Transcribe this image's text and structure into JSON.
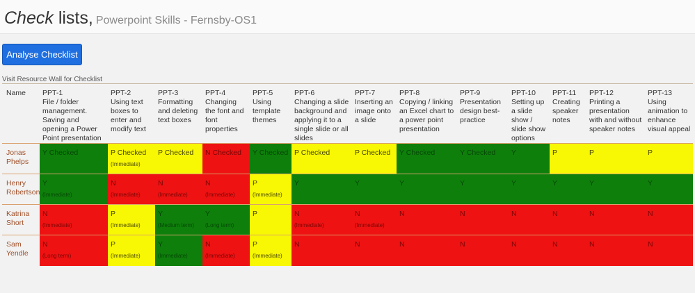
{
  "header": {
    "title_italic": "Check",
    "title_rest": " lists,",
    "subtitle": "Powerpoint Skills - Fernsby-OS1"
  },
  "toolbar": {
    "analyse_label": "Analyse Checklist",
    "resource_link": "Visit Resource Wall for Checklist"
  },
  "table": {
    "name_header": "Name",
    "columns": [
      {
        "code": "PPT-1",
        "desc": "File / folder management. Saving and opening a Power Point presentation"
      },
      {
        "code": "PPT-2",
        "desc": "Using text boxes to enter and modify text"
      },
      {
        "code": "PPT-3",
        "desc": "Formatting and deleting text boxes"
      },
      {
        "code": "PPT-4",
        "desc": "Changing the font and font properties"
      },
      {
        "code": "PPT-5",
        "desc": "Using template themes"
      },
      {
        "code": "PPT-6",
        "desc": "Changing a slide background and applying it to a single slide or all slides"
      },
      {
        "code": "PPT-7",
        "desc": "Inserting an image onto a slide"
      },
      {
        "code": "PPT-8",
        "desc": "Copying / linking an Excel chart to a power point presentation"
      },
      {
        "code": "PPT-9",
        "desc": "Presentation design best-practice"
      },
      {
        "code": "PPT-10",
        "desc": "Setting up a slide show / slide show options"
      },
      {
        "code": "PPT-11",
        "desc": "Creating speaker notes"
      },
      {
        "code": "PPT-12",
        "desc": "Printing a presentation with and without speaker notes"
      },
      {
        "code": "PPT-13",
        "desc": "Using animation to enhance visual appeal"
      }
    ],
    "rows": [
      {
        "name": "Jonas Phelps",
        "cells": [
          {
            "s": "Y",
            "t": "Y Checked",
            "w": ""
          },
          {
            "s": "P",
            "t": "P Checked",
            "w": "(Immediate)"
          },
          {
            "s": "P",
            "t": "P Checked",
            "w": ""
          },
          {
            "s": "N",
            "t": "N Checked",
            "w": ""
          },
          {
            "s": "Y",
            "t": "Y Checked",
            "w": ""
          },
          {
            "s": "P",
            "t": "P Checked",
            "w": ""
          },
          {
            "s": "P",
            "t": "P Checked",
            "w": ""
          },
          {
            "s": "Y",
            "t": "Y Checked",
            "w": ""
          },
          {
            "s": "Y",
            "t": "Y Checked",
            "w": ""
          },
          {
            "s": "Y",
            "t": "Y",
            "w": ""
          },
          {
            "s": "P",
            "t": "P",
            "w": ""
          },
          {
            "s": "P",
            "t": "P",
            "w": ""
          },
          {
            "s": "P",
            "t": "P",
            "w": ""
          }
        ]
      },
      {
        "name": "Henry Robertson",
        "cells": [
          {
            "s": "Y",
            "t": "Y",
            "w": "(Immediate)"
          },
          {
            "s": "N",
            "t": "N",
            "w": "(Immediate)"
          },
          {
            "s": "N",
            "t": "N",
            "w": "(Immediate)"
          },
          {
            "s": "N",
            "t": "N",
            "w": "(Immediate)"
          },
          {
            "s": "P",
            "t": "P",
            "w": "(Immediate)"
          },
          {
            "s": "Y",
            "t": "Y",
            "w": ""
          },
          {
            "s": "Y",
            "t": "Y",
            "w": ""
          },
          {
            "s": "Y",
            "t": "Y",
            "w": ""
          },
          {
            "s": "Y",
            "t": "Y",
            "w": ""
          },
          {
            "s": "Y",
            "t": "Y",
            "w": ""
          },
          {
            "s": "Y",
            "t": "Y",
            "w": ""
          },
          {
            "s": "Y",
            "t": "Y",
            "w": ""
          },
          {
            "s": "Y",
            "t": "Y",
            "w": ""
          }
        ]
      },
      {
        "name": "Katrina Short",
        "cells": [
          {
            "s": "N",
            "t": "N",
            "w": "(Immediate)"
          },
          {
            "s": "P",
            "t": "P",
            "w": "(Immediate)"
          },
          {
            "s": "Y",
            "t": "Y",
            "w": "(Medium term)"
          },
          {
            "s": "Y",
            "t": "Y",
            "w": "(Long term)"
          },
          {
            "s": "P",
            "t": "P",
            "w": ""
          },
          {
            "s": "N",
            "t": "N",
            "w": "(Immediate)"
          },
          {
            "s": "N",
            "t": "N",
            "w": "(Immediate)"
          },
          {
            "s": "N",
            "t": "N",
            "w": ""
          },
          {
            "s": "N",
            "t": "N",
            "w": ""
          },
          {
            "s": "N",
            "t": "N",
            "w": ""
          },
          {
            "s": "N",
            "t": "N",
            "w": ""
          },
          {
            "s": "N",
            "t": "N",
            "w": ""
          },
          {
            "s": "N",
            "t": "N",
            "w": ""
          }
        ]
      },
      {
        "name": "Sam Yendle",
        "cells": [
          {
            "s": "N",
            "t": "N",
            "w": "(Long term)"
          },
          {
            "s": "P",
            "t": "P",
            "w": "(Immediate)"
          },
          {
            "s": "Y",
            "t": "Y",
            "w": "(Immediate)"
          },
          {
            "s": "N",
            "t": "N",
            "w": "(Immediate)"
          },
          {
            "s": "P",
            "t": "P",
            "w": "(Immediate)"
          },
          {
            "s": "N",
            "t": "N",
            "w": ""
          },
          {
            "s": "N",
            "t": "N",
            "w": ""
          },
          {
            "s": "N",
            "t": "N",
            "w": ""
          },
          {
            "s": "N",
            "t": "N",
            "w": ""
          },
          {
            "s": "N",
            "t": "N",
            "w": ""
          },
          {
            "s": "N",
            "t": "N",
            "w": ""
          },
          {
            "s": "N",
            "t": "N",
            "w": ""
          },
          {
            "s": "N",
            "t": "N",
            "w": ""
          }
        ]
      }
    ]
  },
  "colors": {
    "yes": "#0e7f0b",
    "partial": "#f8f704",
    "no": "#ee1212",
    "button": "#1f6fe0",
    "name_text": "#a0502a"
  }
}
